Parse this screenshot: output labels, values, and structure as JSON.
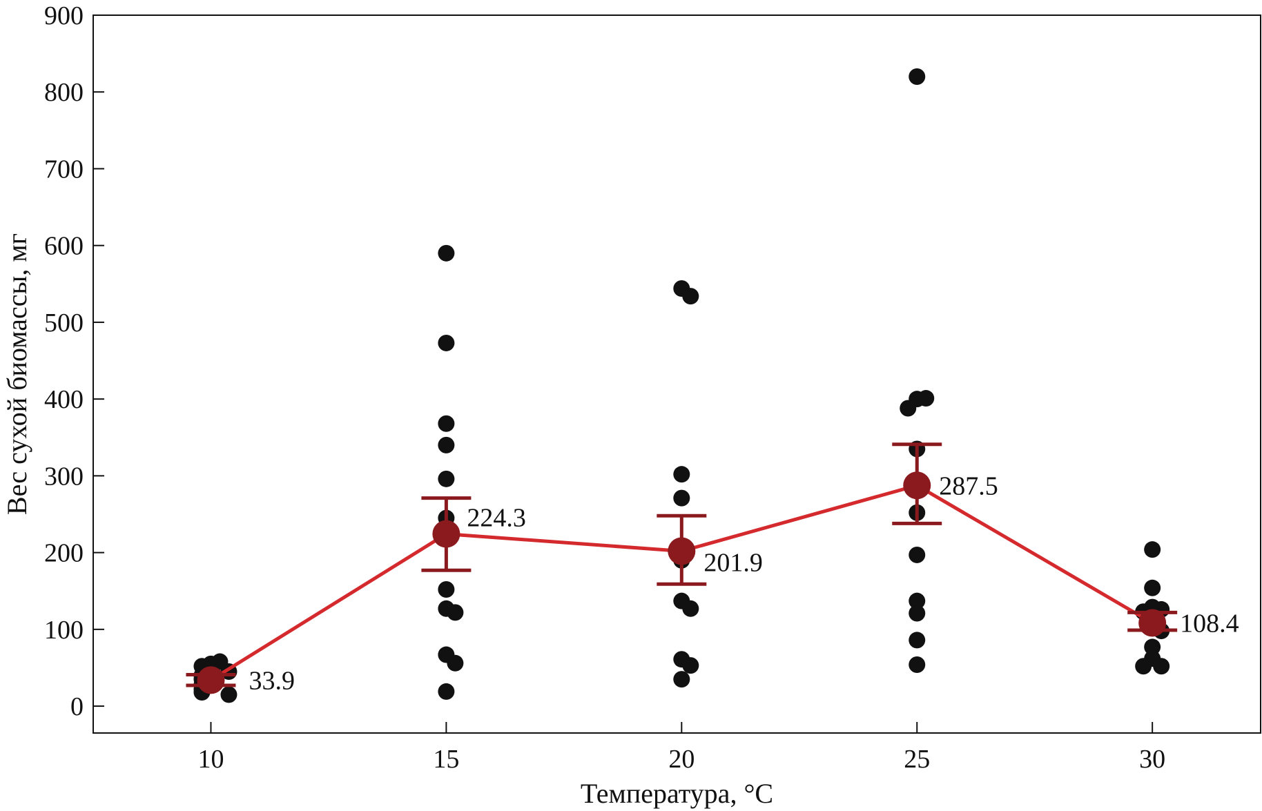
{
  "chart_data": {
    "type": "scatter",
    "title": "",
    "xlabel": "Температура, °C",
    "ylabel": "Вес сухой биомассы, мг",
    "x_ticks": [
      10,
      15,
      20,
      25,
      30
    ],
    "x_tick_labels": [
      "10",
      "15",
      "20",
      "25",
      "30"
    ],
    "xlim": [
      7.5,
      32.3
    ],
    "y_ticks": [
      0,
      100,
      200,
      300,
      400,
      500,
      600,
      700,
      800,
      900
    ],
    "y_tick_labels": [
      "0",
      "100",
      "200",
      "300",
      "400",
      "500",
      "600",
      "700",
      "800",
      "900"
    ],
    "ylim": [
      -35,
      900
    ],
    "grid": false,
    "legend": "none",
    "points": [
      {
        "x": 10,
        "values": [
          55,
          58,
          52,
          45,
          40,
          35,
          28,
          22,
          18,
          15
        ]
      },
      {
        "x": 15,
        "values": [
          590,
          473,
          368,
          340,
          296,
          245,
          152,
          127,
          122,
          67,
          56,
          19
        ]
      },
      {
        "x": 20,
        "values": [
          544,
          534,
          302,
          271,
          190,
          137,
          127,
          61,
          53,
          35
        ]
      },
      {
        "x": 25,
        "values": [
          820,
          400,
          401,
          388,
          335,
          252,
          197,
          137,
          121,
          86,
          54
        ]
      },
      {
        "x": 30,
        "values": [
          204,
          154,
          129,
          126,
          123,
          104,
          98,
          77,
          62,
          52,
          52
        ]
      }
    ],
    "means": {
      "x": [
        10,
        15,
        20,
        25,
        30
      ],
      "values": [
        33.9,
        224.3,
        201.9,
        287.5,
        108.4
      ],
      "labels": [
        "33.9",
        "224.3",
        "201.9",
        "287.5",
        "108.4"
      ],
      "err_low": [
        27,
        177,
        159,
        238,
        99
      ],
      "err_high": [
        41,
        271,
        248,
        341,
        122
      ]
    },
    "colors": {
      "points": "#111111",
      "mean_line": "#d42a2e",
      "mean_marker": "#8b1a1e",
      "error_bar": "#8b1a1e",
      "axis": "#111111"
    }
  }
}
